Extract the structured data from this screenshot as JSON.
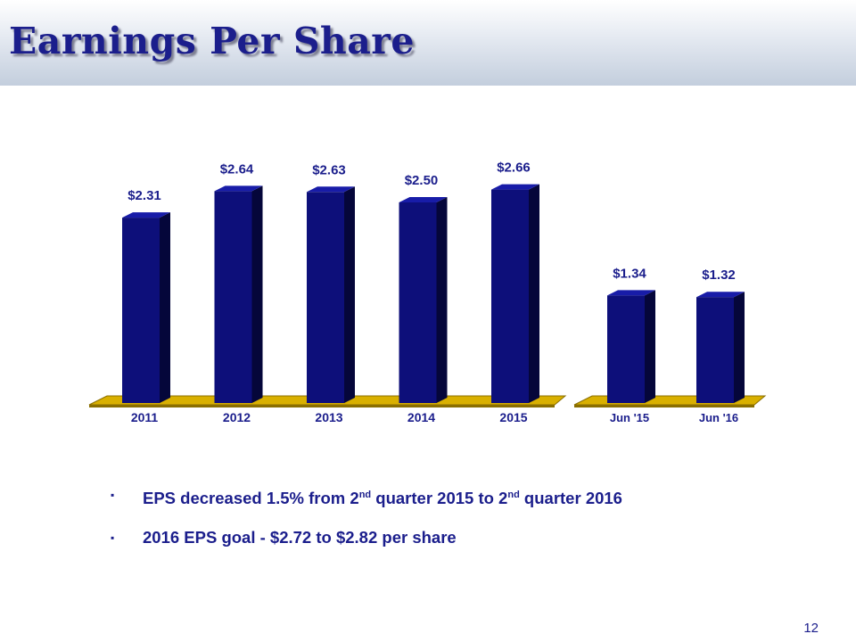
{
  "slide": {
    "title": "Earnings Per Share",
    "page_number": "12"
  },
  "bullets": [
    {
      "marker": "▪",
      "text_a": "EPS decreased 1.5% from 2",
      "sup_a": "nd",
      "text_b": " quarter 2015 to 2",
      "sup_b": "nd",
      "text_c": " quarter 2016"
    },
    {
      "marker": "▪",
      "text": "2016 EPS goal - $2.72 to $2.82 per share"
    }
  ],
  "colors": {
    "bar_front": "#0d0f7a",
    "bar_side": "#05063a",
    "bar_top": "#181ca8",
    "floor": "#d9b000",
    "floor_edge": "#8a6e00",
    "text": "#1b1e8c"
  },
  "chart_data": [
    {
      "type": "bar",
      "categories": [
        "2011",
        "2012",
        "2013",
        "2014",
        "2015"
      ],
      "values": [
        2.31,
        2.64,
        2.63,
        2.5,
        2.66
      ],
      "data_labels": [
        "$2.31",
        "$2.64",
        "$2.63",
        "$2.50",
        "$2.66"
      ],
      "title": "",
      "xlabel": "",
      "ylabel": "",
      "ylim": [
        0,
        2.66
      ],
      "grid": false,
      "legend": "none"
    },
    {
      "type": "bar",
      "categories": [
        "Jun '15",
        "Jun '16"
      ],
      "values": [
        1.34,
        1.32
      ],
      "data_labels": [
        "$1.34",
        "$1.32"
      ],
      "title": "",
      "xlabel": "",
      "ylabel": "",
      "ylim": [
        0,
        2.66
      ],
      "grid": false,
      "legend": "none"
    }
  ]
}
